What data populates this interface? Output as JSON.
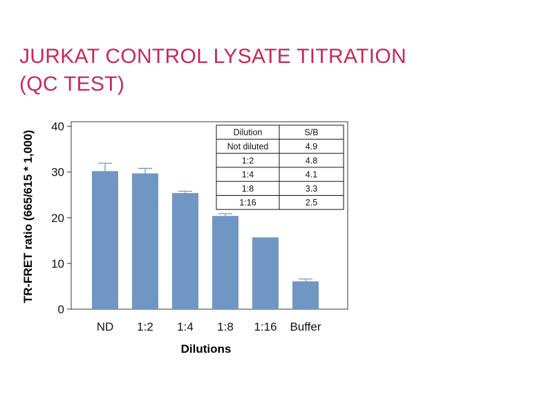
{
  "page": {
    "title_line1": "JURKAT CONTROL LYSATE TITRATION",
    "title_line2": "(QC TEST)"
  },
  "colors": {
    "title": "#c7285a",
    "bar": "#7097c3",
    "error_bar": "#7097c3",
    "axis": "#333333"
  },
  "chart_data": {
    "type": "bar",
    "categories": [
      "ND",
      "1:2",
      "1:4",
      "1:8",
      "1:16",
      "Buffer"
    ],
    "values": [
      30.2,
      29.7,
      25.4,
      20.4,
      15.7,
      6.1
    ],
    "errors": [
      1.7,
      1.1,
      0.4,
      0.5,
      0.0,
      0.5
    ],
    "xlabel": "Dilutions",
    "ylabel": "TR-FRET ratio (665/615 * 1,000)",
    "ylim": [
      0,
      41
    ],
    "yticks": [
      0,
      10,
      20,
      30,
      40
    ],
    "grid": false,
    "legend": "none",
    "inset_table": {
      "placement": "top-right",
      "columns": [
        "Dilution",
        "S/B"
      ],
      "rows": [
        [
          "Not diluted",
          "4.9"
        ],
        [
          "1:2",
          "4.8"
        ],
        [
          "1:4",
          "4.1"
        ],
        [
          "1:8",
          "3.3"
        ],
        [
          "1:16",
          "2.5"
        ]
      ]
    }
  }
}
